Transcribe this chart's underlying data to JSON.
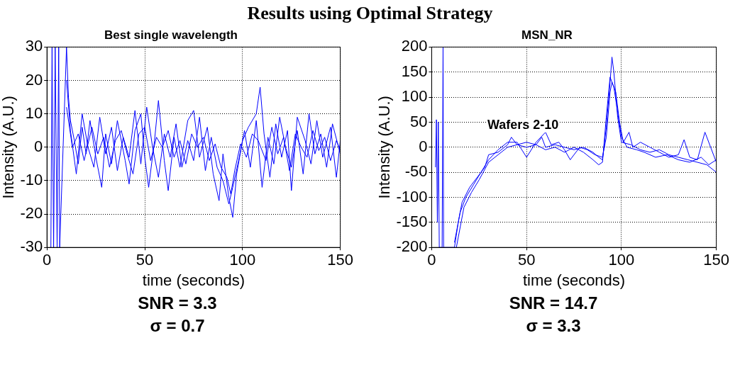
{
  "chart_data": [
    {
      "type": "line",
      "title": "Best single wavelength",
      "xlabel": "time (seconds)",
      "ylabel": "Intensity (A.U.)",
      "xlim": [
        0,
        150
      ],
      "xticks": [
        0,
        50,
        100,
        150
      ],
      "ylim": [
        -30,
        30
      ],
      "yticks": [
        -30,
        -20,
        -10,
        0,
        10,
        20,
        30
      ],
      "grid": true,
      "annotations": [
        "Results using Optimal Strategy",
        "SNR = 3.3",
        "σ = 0.7"
      ],
      "series": [
        {
          "color": "#0000ff",
          "x": [
            2,
            2.6,
            3.4,
            4.2,
            5.2,
            6,
            6.5,
            10,
            11,
            12,
            14,
            16,
            18,
            20,
            22,
            25,
            28,
            30,
            33,
            36,
            40,
            42,
            45,
            48,
            50,
            52,
            55,
            57,
            60,
            62,
            65,
            68,
            72,
            75,
            78,
            82,
            85,
            88,
            90,
            93,
            95,
            97,
            100,
            103,
            107,
            109,
            111,
            114,
            117,
            120,
            123,
            125,
            128,
            132,
            135,
            138,
            141,
            145,
            148,
            150
          ],
          "values": [
            -30,
            30,
            -30,
            30,
            -30,
            30,
            -30,
            30,
            15,
            8,
            2,
            -5,
            6,
            -2,
            8,
            -3,
            -12,
            4,
            -5,
            8,
            -4,
            -11,
            5,
            10,
            -3,
            -12,
            2,
            14,
            -4,
            -13,
            3,
            -6,
            8,
            11,
            -3,
            6,
            -8,
            -16,
            -2,
            -15,
            -21,
            -8,
            2,
            6,
            10,
            18,
            4,
            -9,
            7,
            -3,
            5,
            -13,
            9,
            2,
            -5,
            8,
            -3,
            6,
            -9,
            2
          ]
        },
        {
          "color": "#0000ff",
          "x": [
            10,
            12,
            15,
            18,
            21,
            24,
            27,
            30,
            33,
            36,
            39,
            42,
            45,
            48,
            51,
            54,
            57,
            60,
            63,
            66,
            69,
            72,
            75,
            78,
            81,
            84,
            87,
            90,
            93,
            95,
            98,
            101,
            104,
            107,
            110,
            113,
            116,
            119,
            122,
            125,
            128,
            131,
            134,
            137,
            140,
            143,
            146,
            150
          ],
          "values": [
            20,
            5,
            -8,
            10,
            0,
            -6,
            9,
            -2,
            6,
            -7,
            3,
            -3,
            11,
            -5,
            12,
            0,
            -9,
            4,
            -3,
            7,
            -6,
            2,
            -4,
            9,
            -7,
            3,
            -6,
            -10,
            -17,
            -12,
            -4,
            5,
            -6,
            8,
            -12,
            3,
            -5,
            9,
            0,
            -6,
            5,
            -8,
            10,
            -2,
            4,
            -6,
            7,
            -2
          ]
        },
        {
          "color": "#0000ff",
          "x": [
            10,
            13,
            16,
            19,
            23,
            26,
            29,
            32,
            35,
            38,
            41,
            44,
            47,
            50,
            53,
            56,
            59,
            62,
            65,
            68,
            71,
            74,
            77,
            80,
            83,
            86,
            89,
            92,
            94,
            96,
            99,
            102,
            105,
            108,
            112,
            115,
            118,
            121,
            124,
            127,
            130,
            133,
            136,
            139,
            142,
            145,
            148,
            150
          ],
          "values": [
            12,
            0,
            4,
            -4,
            6,
            -2,
            3,
            -6,
            2,
            5,
            -2,
            -8,
            4,
            6,
            -4,
            3,
            0,
            5,
            -3,
            2,
            -5,
            4,
            0,
            3,
            -4,
            1,
            -6,
            -9,
            -14,
            -7,
            1,
            -3,
            4,
            2,
            -4,
            6,
            -2,
            3,
            -7,
            4,
            0,
            -3,
            5,
            -1,
            3,
            -4,
            2,
            -1
          ]
        }
      ]
    },
    {
      "type": "line",
      "title": "MSN_NR",
      "xlabel": "time (seconds)",
      "ylabel": "Intensity (A.U.)",
      "xlim": [
        0,
        150
      ],
      "xticks": [
        0,
        50,
        100,
        150
      ],
      "ylim": [
        -200,
        200
      ],
      "yticks": [
        -200,
        -150,
        -100,
        -50,
        0,
        50,
        100,
        150,
        200
      ],
      "grid": true,
      "annotations": [
        "Wafers 2-10",
        "SNR = 14.7",
        "σ = 3.3"
      ],
      "series": [
        {
          "color": "#0000ff",
          "x": [
            2,
            2.5,
            3,
            3.5,
            4,
            5.5,
            6,
            6.3,
            12,
            14,
            16,
            18,
            20,
            24,
            28,
            30,
            35,
            40,
            42,
            45,
            50,
            55,
            58,
            60,
            65,
            70,
            75,
            80,
            85,
            88,
            90,
            92,
            94,
            95,
            96,
            98,
            100,
            105,
            110,
            115,
            120,
            125,
            130,
            135,
            140,
            145,
            150
          ],
          "values": [
            -40,
            55,
            -150,
            50,
            -200,
            -200,
            200,
            -200,
            -200,
            -150,
            -110,
            -95,
            -80,
            -60,
            -40,
            -15,
            -10,
            5,
            20,
            5,
            10,
            5,
            20,
            0,
            5,
            0,
            -5,
            0,
            -10,
            -20,
            -25,
            40,
            130,
            180,
            150,
            60,
            10,
            5,
            -5,
            -10,
            -5,
            -15,
            -20,
            -25,
            -30,
            -35,
            -50
          ]
        },
        {
          "color": "#0000ff",
          "x": [
            12,
            15,
            18,
            22,
            26,
            30,
            35,
            40,
            45,
            50,
            55,
            60,
            63,
            67,
            70,
            73,
            78,
            82,
            86,
            90,
            92,
            94,
            95,
            97,
            99,
            101,
            104,
            106,
            110,
            115,
            120,
            125,
            130,
            133,
            136,
            140,
            144,
            147,
            150
          ],
          "values": [
            -190,
            -130,
            -100,
            -75,
            -50,
            -25,
            -5,
            10,
            10,
            -20,
            10,
            30,
            5,
            10,
            -5,
            -25,
            0,
            -5,
            -15,
            -20,
            20,
            110,
            130,
            110,
            50,
            10,
            30,
            0,
            10,
            0,
            -10,
            -20,
            -15,
            15,
            -20,
            -25,
            30,
            0,
            -30
          ]
        },
        {
          "color": "#0000ff",
          "x": [
            13,
            17,
            21,
            25,
            30,
            35,
            40,
            45,
            50,
            55,
            60,
            65,
            70,
            75,
            80,
            85,
            88,
            90,
            92,
            94,
            96,
            98,
            100,
            103,
            108,
            112,
            118,
            124,
            130,
            136,
            142,
            146,
            150
          ],
          "values": [
            -200,
            -120,
            -90,
            -65,
            -30,
            -15,
            0,
            5,
            0,
            5,
            -5,
            0,
            -10,
            0,
            -10,
            -25,
            -35,
            -30,
            60,
            140,
            120,
            70,
            20,
            0,
            -5,
            -10,
            -20,
            -15,
            -25,
            -30,
            -20,
            -35,
            -25
          ]
        }
      ]
    }
  ]
}
